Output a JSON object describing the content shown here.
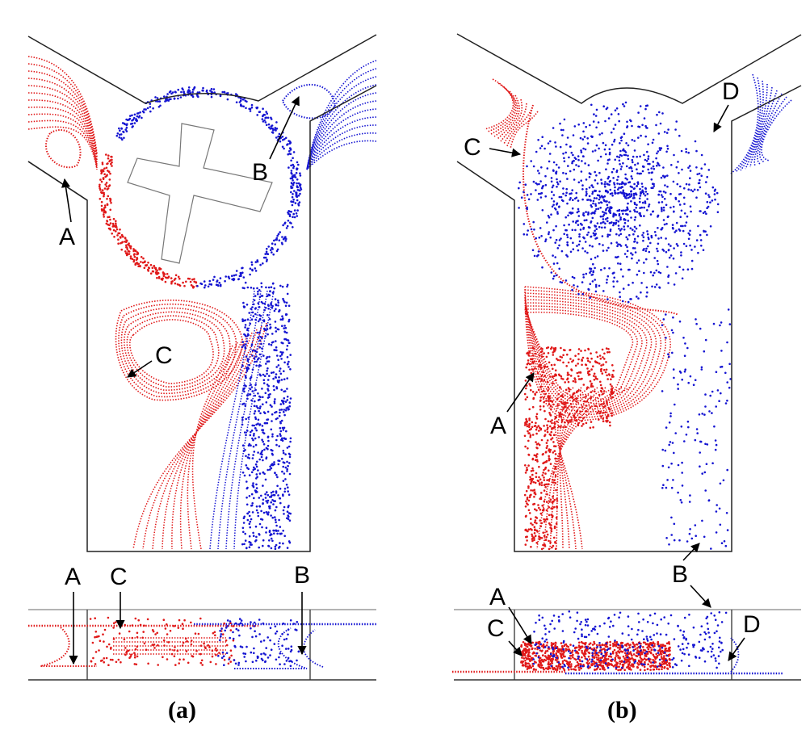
{
  "colors": {
    "red": "#e01818",
    "blue": "#1414d2",
    "wall": "#222222",
    "grid": "#888888"
  },
  "panels": [
    {
      "caption": "(a)",
      "main_labels": [
        "A",
        "B",
        "C"
      ],
      "bottom_labels": [
        "A",
        "C",
        "B"
      ]
    },
    {
      "caption": "(b)",
      "main_labels": [
        "A",
        "B",
        "C",
        "D"
      ],
      "bottom_labels": [
        "A",
        "C",
        "D"
      ]
    }
  ]
}
